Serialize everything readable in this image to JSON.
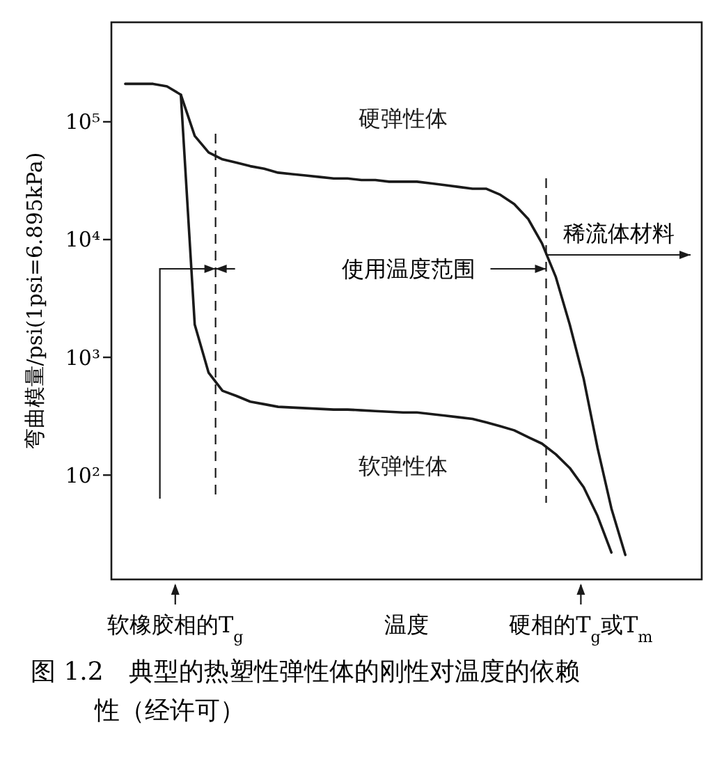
{
  "chart_data": {
    "type": "line",
    "title": "图 1.2　典型的热塑性弹性体的刚性对温度的依赖性（经许可）",
    "xlabel": "温度",
    "ylabel": "弯曲模量/psi(1psi=6.895kPa)",
    "categories": [
      null,
      null,
      null,
      null,
      null,
      null,
      null,
      null,
      null,
      null,
      null,
      null,
      null,
      null,
      null,
      null,
      null,
      null,
      null,
      null,
      null,
      null,
      null,
      null,
      null,
      null,
      null,
      null,
      null,
      null,
      null,
      null,
      null,
      null,
      null,
      null,
      null,
      null,
      null,
      null,
      null,
      null,
      null
    ],
    "log": "y",
    "ylim": [
      13,
      700000
    ],
    "yticks": [
      {
        "value": 100,
        "label": "10²"
      },
      {
        "value": 1000,
        "label": "10³"
      },
      {
        "value": 10000,
        "label": "10⁴"
      },
      {
        "value": 100000,
        "label": "10⁵"
      }
    ],
    "tick_labels": "y",
    "grid": false,
    "marker": "none",
    "line_style": "solid",
    "series": [
      {
        "name": "硬弹性体",
        "color": "#1a1a1a",
        "values": [
          null,
          210000,
          210000,
          210000,
          200000,
          170000,
          76000,
          55000,
          48000,
          45000,
          42000,
          40000,
          37000,
          36000,
          35000,
          34000,
          33000,
          33000,
          32000,
          32000,
          31000,
          31000,
          31000,
          30000,
          29000,
          28000,
          27000,
          27000,
          24000,
          20000,
          15000,
          9300,
          4800,
          1900,
          660,
          170,
          52,
          21,
          null,
          null,
          null,
          null,
          null
        ]
      },
      {
        "name": "软弹性体",
        "color": "#1a1a1a",
        "values": [
          null,
          null,
          null,
          null,
          null,
          170000,
          1900,
          740,
          520,
          470,
          420,
          400,
          380,
          375,
          370,
          365,
          360,
          360,
          355,
          350,
          345,
          340,
          340,
          330,
          320,
          310,
          300,
          280,
          260,
          240,
          210,
          185,
          150,
          115,
          79,
          45,
          22,
          null,
          null,
          null,
          null,
          null,
          null
        ]
      }
    ],
    "annotations": [
      "使用温度范围",
      "稀流体材料",
      "软橡胶相的T$_{g}$",
      "硬相的T$_{g}$或T$_{m}$"
    ]
  }
}
